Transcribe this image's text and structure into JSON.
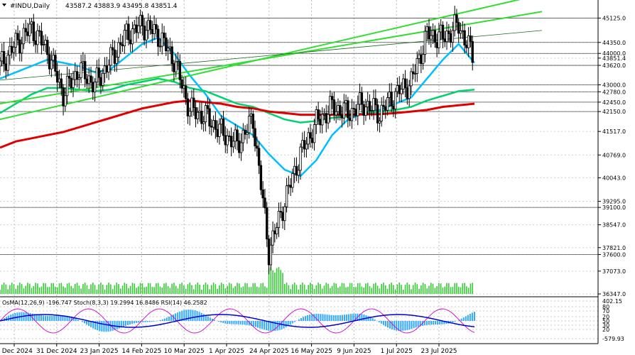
{
  "header": {
    "symbol": "#INDU,Daily",
    "ohlc": "43587.2 43883.9 43495.8 43851.4"
  },
  "price_axis": {
    "ticks": [
      "45125.0",
      "44350.0",
      "44000.0",
      "43851.4",
      "43620.0",
      "43000.0",
      "42780.0",
      "42450.0",
      "42150.0",
      "41517.0",
      "40769.0",
      "40043.0",
      "39295.0",
      "39100.0",
      "38547.0",
      "37821.0",
      "37600.0",
      "37073.0",
      "36347.0"
    ]
  },
  "indicator": {
    "label": "OsMA(12,26,9) -196.747   Stoch(8,3,3) 19.2994 16.8486   RSI(14) 46.2582",
    "axis_ticks": [
      "402.15",
      "80",
      "70",
      "20",
      "50",
      "30",
      "20",
      "-579.93"
    ]
  },
  "time_axis": {
    "labels": [
      "5 Dec 2024",
      "31 Dec 2024",
      "23 Jan 2025",
      "14 Feb 2025",
      "10 Mar 2025",
      "1 Apr 2025",
      "24 Apr 2025",
      "16 May 2025",
      "9 Jun 2025",
      "1 Jul 2025",
      "23 Jul 2025"
    ]
  },
  "colors": {
    "sma_short": "#00bfff",
    "sma_mid": "#00d26e",
    "sma_long": "#e00000",
    "channel": "#33dd33",
    "candle": "#000000",
    "volume": "#33cc33",
    "osma": "#33aaff",
    "signal": "#0000cc",
    "stoch": "#cc00cc"
  },
  "chart_data": {
    "type": "line",
    "title": "#INDU,Daily",
    "ohlc_last": {
      "open": 43587.2,
      "high": 43883.9,
      "low": 43495.8,
      "close": 43851.4
    },
    "ylim": [
      36347,
      45700
    ],
    "levels": [
      45125,
      44350,
      44000,
      43620,
      43000,
      42780,
      42450,
      42150,
      39100,
      37600
    ],
    "grid": true,
    "series": [
      {
        "values": [
          43600,
          44300,
          44800,
          44100,
          42700,
          43500,
          43000,
          43800,
          44600,
          44900,
          44600,
          43800,
          42200,
          42000,
          41500,
          41100,
          41900,
          37700,
          39300,
          40800,
          41800,
          42300,
          42100,
          42400,
          42100,
          42700,
          43100,
          44600,
          44500,
          44900,
          43800
        ]
      },
      {
        "values": [
          43200,
          43400,
          43600,
          43800,
          43700,
          43600,
          43400,
          43500,
          43900,
          44300,
          44500,
          44000,
          43300,
          42700,
          42000,
          41700,
          41400,
          40800,
          40300,
          40100,
          40600,
          41400,
          41900,
          42100,
          42200,
          42400,
          42600,
          43200,
          43800,
          44300,
          43700
        ]
      },
      {
        "values": [
          42100,
          42400,
          42700,
          42900,
          42900,
          42850,
          42800,
          42850,
          43000,
          43100,
          43200,
          43100,
          42900,
          42800,
          42600,
          42400,
          42300,
          42100,
          41900,
          41800,
          41850,
          41950,
          42000,
          42100,
          42150,
          42200,
          42300,
          42500,
          42650,
          42800,
          42850
        ]
      },
      {
        "values": [
          41000,
          41200,
          41300,
          41400,
          41500,
          41650,
          41800,
          41950,
          42100,
          42250,
          42350,
          42450,
          42500,
          42450,
          42400,
          42300,
          42250,
          42150,
          42100,
          42050,
          42050,
          42050,
          42050,
          42060,
          42070,
          42100,
          42150,
          42200,
          42300,
          42350,
          42400
        ]
      }
    ],
    "channel_lines": [
      {
        "from": [
          0,
          41900
        ],
        "to": [
          30,
          45700
        ]
      },
      {
        "from": [
          0,
          42400
        ],
        "to": [
          30,
          45150
        ]
      },
      {
        "from": [
          0,
          43150
        ],
        "to": [
          30,
          44550
        ]
      }
    ]
  }
}
